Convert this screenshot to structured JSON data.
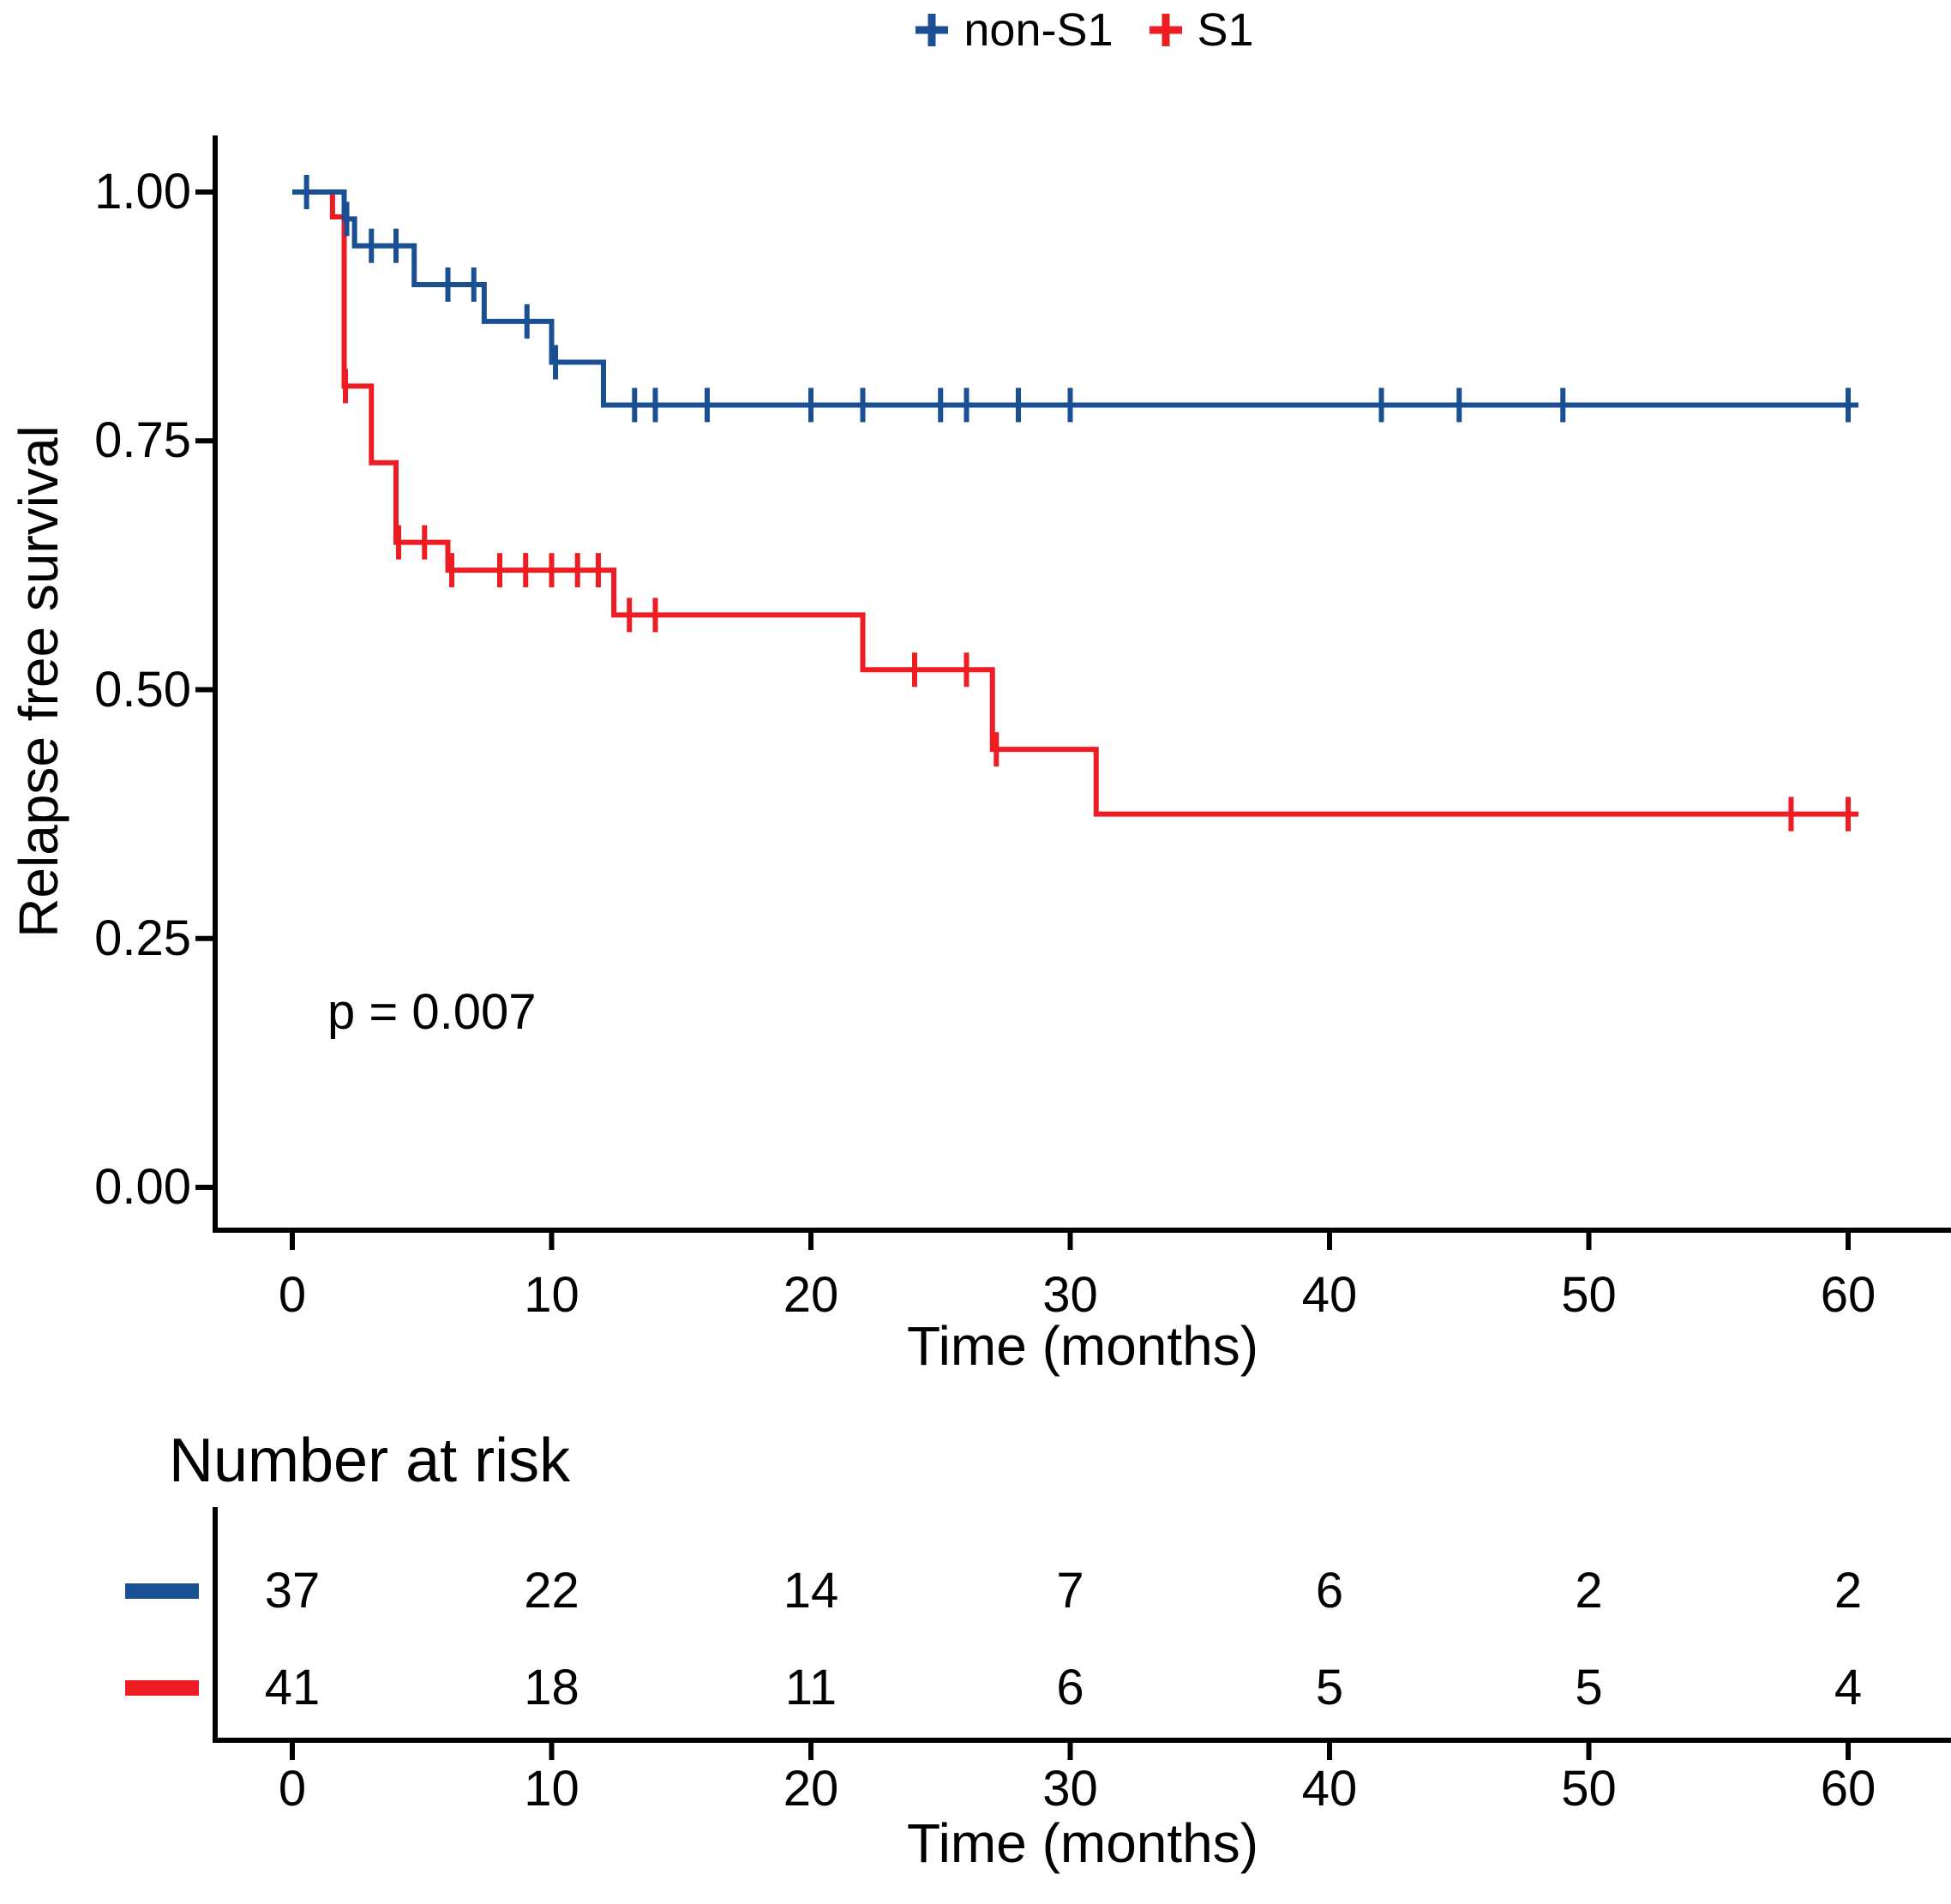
{
  "chart_data": {
    "type": "line",
    "subtype": "kaplan-meier-step",
    "title": "",
    "xlabel": "Time (months)",
    "ylabel": "Relapse free survival",
    "xlim": [
      0,
      60
    ],
    "ylim": [
      0,
      1
    ],
    "grid": false,
    "legend_position": "top-center",
    "pvalue_text": "p = 0.007",
    "xticks": [
      0,
      10,
      20,
      30,
      40,
      50,
      60
    ],
    "yticks": [
      {
        "label": "1.00",
        "value": 1.0
      },
      {
        "label": "0.75",
        "value": 0.75
      },
      {
        "label": "0.50",
        "value": 0.5
      },
      {
        "label": "0.25",
        "value": 0.25
      },
      {
        "label": "0.00",
        "value": 0.0
      }
    ],
    "series": [
      {
        "name": "S1",
        "color": "#ee1c23",
        "steps": [
          [
            0,
            1
          ],
          [
            1.55,
            1
          ],
          [
            1.55,
            0.975
          ],
          [
            2,
            0.975
          ],
          [
            2,
            0.805
          ],
          [
            3.05,
            0.805
          ],
          [
            3.05,
            0.728
          ],
          [
            4,
            0.728
          ],
          [
            4,
            0.648
          ],
          [
            6,
            0.648
          ],
          [
            6,
            0.62
          ],
          [
            12.4,
            0.62
          ],
          [
            12.4,
            0.575
          ],
          [
            22,
            0.575
          ],
          [
            22,
            0.52
          ],
          [
            27,
            0.52
          ],
          [
            27,
            0.44
          ],
          [
            31,
            0.44
          ],
          [
            31,
            0.375
          ],
          [
            60.4,
            0.375
          ]
        ],
        "censors": [
          [
            2.05,
            0.805
          ],
          [
            4.1,
            0.648
          ],
          [
            5.1,
            0.648
          ],
          [
            6.15,
            0.62
          ],
          [
            8,
            0.62
          ],
          [
            9,
            0.62
          ],
          [
            10,
            0.62
          ],
          [
            11,
            0.62
          ],
          [
            11.8,
            0.62
          ],
          [
            13,
            0.575
          ],
          [
            14,
            0.575
          ],
          [
            24,
            0.52
          ],
          [
            26,
            0.52
          ],
          [
            27.15,
            0.44
          ],
          [
            57.8,
            0.375
          ],
          [
            60,
            0.375
          ]
        ]
      },
      {
        "name": "non-S1",
        "color": "#1b4f94",
        "steps": [
          [
            0,
            1
          ],
          [
            2,
            1
          ],
          [
            2,
            0.973
          ],
          [
            2.4,
            0.973
          ],
          [
            2.4,
            0.946
          ],
          [
            4.7,
            0.946
          ],
          [
            4.7,
            0.907
          ],
          [
            7.4,
            0.907
          ],
          [
            7.4,
            0.87
          ],
          [
            10,
            0.87
          ],
          [
            10,
            0.829
          ],
          [
            12,
            0.829
          ],
          [
            12,
            0.786
          ],
          [
            60.4,
            0.786
          ]
        ],
        "censors": [
          [
            0.55,
            1
          ],
          [
            2.1,
            0.973
          ],
          [
            3.05,
            0.946
          ],
          [
            4,
            0.946
          ],
          [
            6,
            0.907
          ],
          [
            7,
            0.907
          ],
          [
            9.05,
            0.87
          ],
          [
            10.15,
            0.829
          ],
          [
            13.2,
            0.786
          ],
          [
            14,
            0.786
          ],
          [
            16,
            0.786
          ],
          [
            20,
            0.786
          ],
          [
            22,
            0.786
          ],
          [
            25,
            0.786
          ],
          [
            26,
            0.786
          ],
          [
            28,
            0.786
          ],
          [
            30,
            0.786
          ],
          [
            42,
            0.786
          ],
          [
            45,
            0.786
          ],
          [
            49,
            0.786
          ],
          [
            60,
            0.786
          ]
        ]
      }
    ],
    "legend_order": [
      "non-S1",
      "S1"
    ],
    "risk_table": {
      "title": "Number at risk",
      "xlabel": "Time (months)",
      "times": [
        0,
        10,
        20,
        30,
        40,
        50,
        60
      ],
      "rows": [
        {
          "name": "non-S1",
          "color": "#1b4f94",
          "counts": [
            37,
            22,
            14,
            7,
            6,
            2,
            2
          ]
        },
        {
          "name": "S1",
          "color": "#ee1c23",
          "counts": [
            41,
            18,
            11,
            6,
            5,
            5,
            4
          ]
        }
      ]
    }
  }
}
